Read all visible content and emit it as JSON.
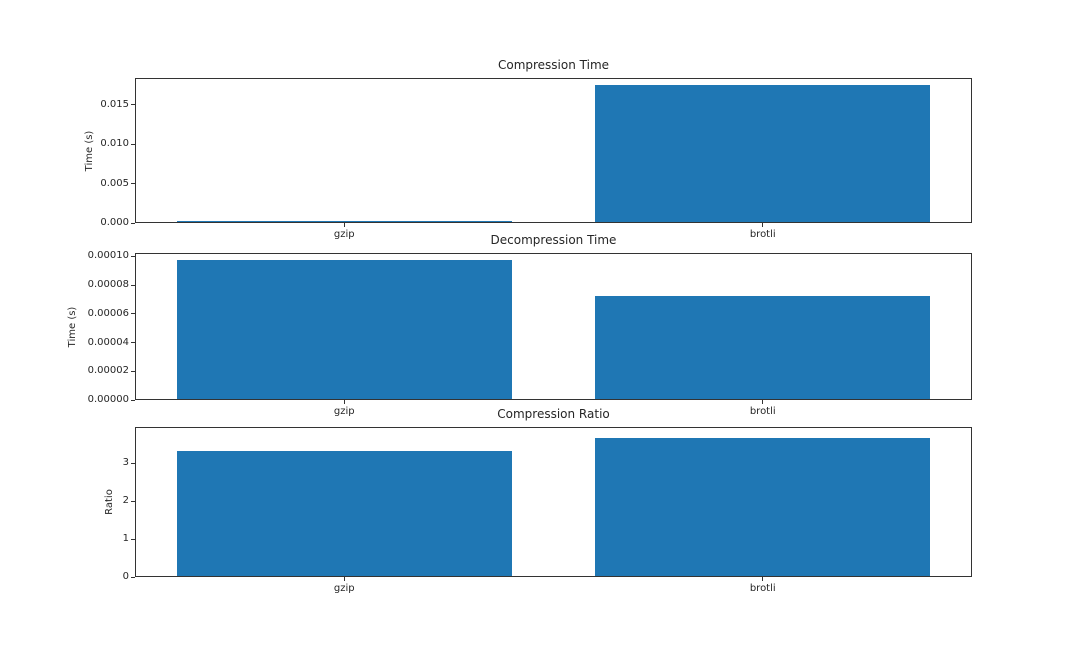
{
  "figure": {
    "background": "#ffffff",
    "bar_color": "#1f77b4",
    "spine_color": "#333333",
    "text_color": "#262626"
  },
  "chart_data": [
    {
      "type": "bar",
      "title": "Compression Time",
      "ylabel": "Time (s)",
      "categories": [
        "gzip",
        "brotli"
      ],
      "values": [
        0.00025,
        0.0175
      ],
      "ylim": [
        0,
        0.018375
      ],
      "yticks": [
        0,
        0.005,
        0.01,
        0.015
      ],
      "ytick_labels": [
        "0.000",
        "0.005",
        "0.010",
        "0.015"
      ],
      "bar_width_fraction": 0.8,
      "grid": false,
      "legend": "none"
    },
    {
      "type": "bar",
      "title": "Decompression Time",
      "ylabel": "Time (s)",
      "categories": [
        "gzip",
        "brotli"
      ],
      "values": [
        9.75e-05,
        7.25e-05
      ],
      "ylim": [
        0,
        0.0001024
      ],
      "yticks": [
        0,
        2e-05,
        4e-05,
        6e-05,
        8e-05,
        0.0001
      ],
      "ytick_labels": [
        "0.00000",
        "0.00002",
        "0.00004",
        "0.00006",
        "0.00008",
        "0.00010"
      ],
      "bar_width_fraction": 0.8,
      "grid": false,
      "legend": "none"
    },
    {
      "type": "bar",
      "title": "Compression Ratio",
      "ylabel": "Ratio",
      "categories": [
        "gzip",
        "brotli"
      ],
      "values": [
        3.32,
        3.66
      ],
      "ylim": [
        0,
        3.95
      ],
      "yticks": [
        0,
        1,
        2,
        3
      ],
      "ytick_labels": [
        "0",
        "1",
        "2",
        "3"
      ],
      "bar_width_fraction": 0.8,
      "grid": false,
      "legend": "none"
    }
  ]
}
